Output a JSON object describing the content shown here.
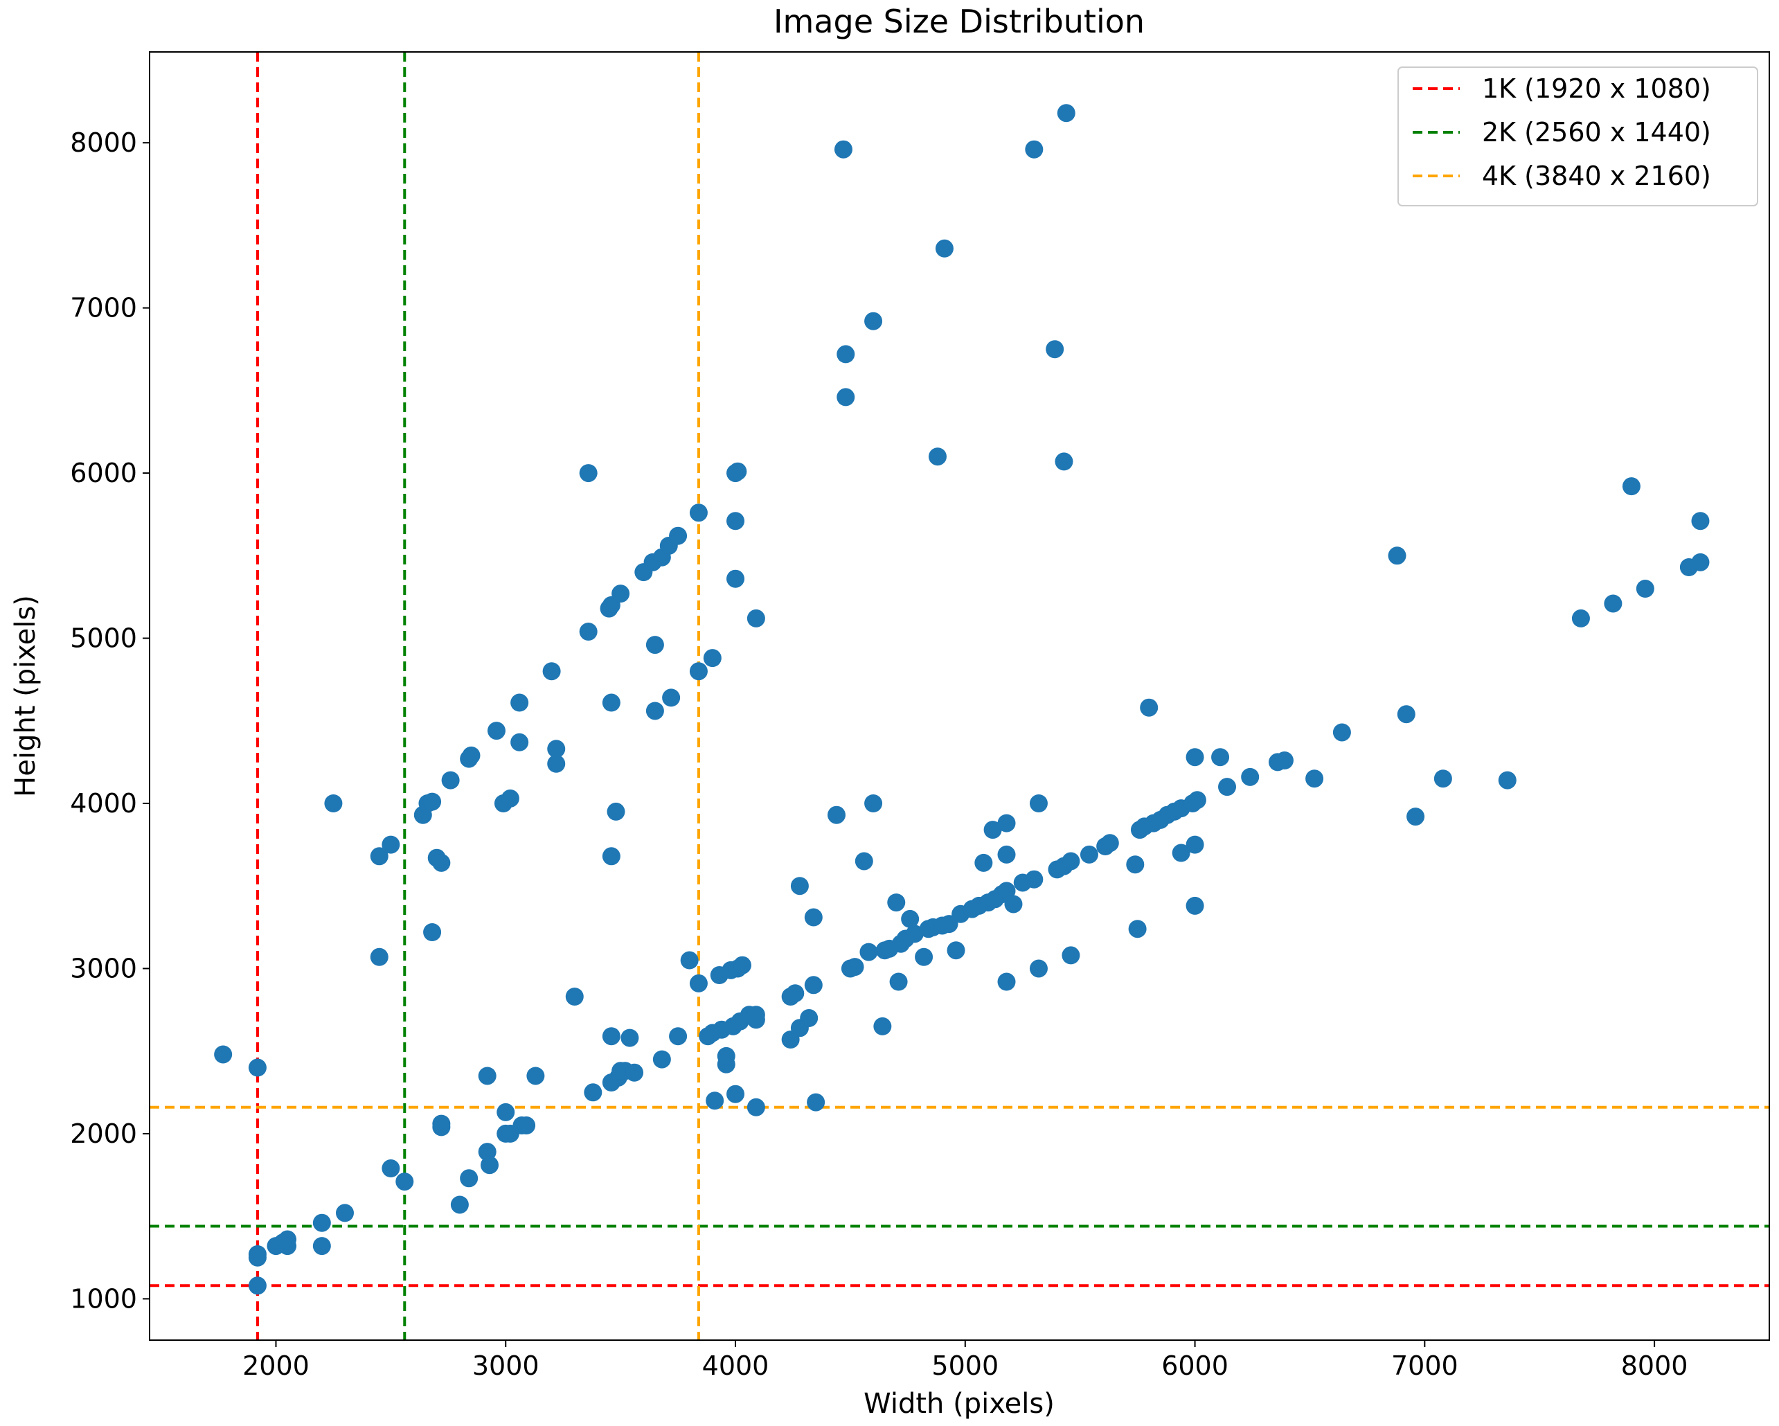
{
  "chart_data": {
    "type": "scatter",
    "title": "Image Size Distribution",
    "xlabel": "Width (pixels)",
    "ylabel": "Height (pixels)",
    "xlim": [
      1450,
      8500
    ],
    "ylim": [
      750,
      8550
    ],
    "xticks": [
      2000,
      3000,
      4000,
      5000,
      6000,
      7000,
      8000
    ],
    "yticks": [
      1000,
      2000,
      3000,
      4000,
      5000,
      6000,
      7000,
      8000
    ],
    "grid": false,
    "legend_position": "upper right",
    "point_color": "#1f77b4",
    "reference_lines": [
      {
        "label": "1K (1920 x 1080)",
        "x": 1920,
        "y": 1080,
        "color": "#ff0000"
      },
      {
        "label": "2K (2560 x 1440)",
        "x": 2560,
        "y": 1440,
        "color": "#008000"
      },
      {
        "label": "4K (3840 x 2160)",
        "x": 3840,
        "y": 2160,
        "color": "#ffa500"
      }
    ],
    "points": [
      [
        1770,
        2480
      ],
      [
        1920,
        2400
      ],
      [
        1920,
        1270
      ],
      [
        1920,
        1250
      ],
      [
        1920,
        1080
      ],
      [
        2000,
        1320
      ],
      [
        2030,
        1340
      ],
      [
        2050,
        1360
      ],
      [
        2050,
        1320
      ],
      [
        2200,
        1460
      ],
      [
        2200,
        1320
      ],
      [
        2250,
        4000
      ],
      [
        2300,
        1520
      ],
      [
        2450,
        3680
      ],
      [
        2450,
        3070
      ],
      [
        2500,
        3750
      ],
      [
        2500,
        1790
      ],
      [
        2560,
        1710
      ],
      [
        2640,
        3930
      ],
      [
        2660,
        4000
      ],
      [
        2680,
        4010
      ],
      [
        2680,
        3220
      ],
      [
        2700,
        3670
      ],
      [
        2720,
        3640
      ],
      [
        2720,
        2060
      ],
      [
        2720,
        2040
      ],
      [
        2760,
        4140
      ],
      [
        2800,
        1570
      ],
      [
        2840,
        4270
      ],
      [
        2840,
        1730
      ],
      [
        2850,
        4290
      ],
      [
        2920,
        2350
      ],
      [
        2920,
        1890
      ],
      [
        2930,
        1810
      ],
      [
        2960,
        4440
      ],
      [
        2990,
        4000
      ],
      [
        3000,
        2130
      ],
      [
        3000,
        2000
      ],
      [
        3020,
        4030
      ],
      [
        3020,
        2000
      ],
      [
        3060,
        4370
      ],
      [
        3060,
        4610
      ],
      [
        3070,
        2050
      ],
      [
        3090,
        2050
      ],
      [
        3130,
        2350
      ],
      [
        3200,
        4800
      ],
      [
        3220,
        4330
      ],
      [
        3220,
        4240
      ],
      [
        3300,
        2830
      ],
      [
        3360,
        6000
      ],
      [
        3360,
        5040
      ],
      [
        3380,
        2250
      ],
      [
        3450,
        5180
      ],
      [
        3460,
        4610
      ],
      [
        3460,
        5200
      ],
      [
        3460,
        3680
      ],
      [
        3460,
        2590
      ],
      [
        3460,
        2310
      ],
      [
        3480,
        3950
      ],
      [
        3490,
        2340
      ],
      [
        3500,
        5270
      ],
      [
        3500,
        2380
      ],
      [
        3520,
        2380
      ],
      [
        3540,
        2580
      ],
      [
        3560,
        2370
      ],
      [
        3600,
        5400
      ],
      [
        3640,
        5460
      ],
      [
        3650,
        4960
      ],
      [
        3650,
        4560
      ],
      [
        3680,
        5490
      ],
      [
        3680,
        2450
      ],
      [
        3710,
        5560
      ],
      [
        3720,
        4640
      ],
      [
        3750,
        5620
      ],
      [
        3750,
        2590
      ],
      [
        3800,
        3050
      ],
      [
        3840,
        5760
      ],
      [
        3840,
        4800
      ],
      [
        3840,
        2910
      ],
      [
        3880,
        2590
      ],
      [
        3900,
        4880
      ],
      [
        3900,
        2610
      ],
      [
        3910,
        2200
      ],
      [
        3930,
        2960
      ],
      [
        3940,
        2630
      ],
      [
        3960,
        2420
      ],
      [
        3960,
        2470
      ],
      [
        3980,
        2990
      ],
      [
        3990,
        2650
      ],
      [
        4000,
        6000
      ],
      [
        4000,
        5710
      ],
      [
        4000,
        5360
      ],
      [
        4000,
        2240
      ],
      [
        4010,
        3000
      ],
      [
        4010,
        6010
      ],
      [
        4020,
        2680
      ],
      [
        4030,
        3020
      ],
      [
        4060,
        2720
      ],
      [
        4090,
        5120
      ],
      [
        4090,
        2720
      ],
      [
        4090,
        2690
      ],
      [
        4090,
        2160
      ],
      [
        4240,
        2830
      ],
      [
        4240,
        2570
      ],
      [
        4260,
        2850
      ],
      [
        4280,
        3500
      ],
      [
        4280,
        2640
      ],
      [
        4320,
        2700
      ],
      [
        4340,
        3310
      ],
      [
        4340,
        2900
      ],
      [
        4350,
        2190
      ],
      [
        4440,
        3930
      ],
      [
        4470,
        7960
      ],
      [
        4480,
        6720
      ],
      [
        4480,
        6460
      ],
      [
        4500,
        3000
      ],
      [
        4520,
        3010
      ],
      [
        4560,
        3650
      ],
      [
        4580,
        3100
      ],
      [
        4600,
        4000
      ],
      [
        4600,
        6920
      ],
      [
        4640,
        2650
      ],
      [
        4650,
        3110
      ],
      [
        4670,
        3120
      ],
      [
        4700,
        3400
      ],
      [
        4710,
        2920
      ],
      [
        4720,
        3150
      ],
      [
        4740,
        3180
      ],
      [
        4760,
        3300
      ],
      [
        4780,
        3210
      ],
      [
        4820,
        3070
      ],
      [
        4840,
        3240
      ],
      [
        4860,
        3250
      ],
      [
        4880,
        6100
      ],
      [
        4900,
        3260
      ],
      [
        4910,
        7360
      ],
      [
        4930,
        3270
      ],
      [
        4960,
        3110
      ],
      [
        4980,
        3330
      ],
      [
        5030,
        3360
      ],
      [
        5060,
        3380
      ],
      [
        5080,
        3640
      ],
      [
        5100,
        3400
      ],
      [
        5120,
        3840
      ],
      [
        5130,
        3420
      ],
      [
        5160,
        3450
      ],
      [
        5180,
        3880
      ],
      [
        5180,
        3690
      ],
      [
        5180,
        3470
      ],
      [
        5180,
        2920
      ],
      [
        5210,
        3390
      ],
      [
        5250,
        3520
      ],
      [
        5300,
        7960
      ],
      [
        5300,
        3540
      ],
      [
        5320,
        4000
      ],
      [
        5320,
        3000
      ],
      [
        5390,
        6750
      ],
      [
        5400,
        3600
      ],
      [
        5430,
        3620
      ],
      [
        5430,
        6070
      ],
      [
        5440,
        8180
      ],
      [
        5460,
        3650
      ],
      [
        5460,
        3080
      ],
      [
        5540,
        3690
      ],
      [
        5610,
        3740
      ],
      [
        5630,
        3760
      ],
      [
        5740,
        3630
      ],
      [
        5750,
        3240
      ],
      [
        5760,
        3840
      ],
      [
        5780,
        3860
      ],
      [
        5800,
        4580
      ],
      [
        5820,
        3880
      ],
      [
        5850,
        3900
      ],
      [
        5880,
        3930
      ],
      [
        5910,
        3950
      ],
      [
        5940,
        3970
      ],
      [
        5940,
        3700
      ],
      [
        5990,
        4000
      ],
      [
        6000,
        4280
      ],
      [
        6000,
        3750
      ],
      [
        6000,
        3380
      ],
      [
        6010,
        4020
      ],
      [
        6110,
        4280
      ],
      [
        6140,
        4100
      ],
      [
        6240,
        4160
      ],
      [
        6360,
        4250
      ],
      [
        6390,
        4260
      ],
      [
        6520,
        4150
      ],
      [
        6640,
        4430
      ],
      [
        6880,
        5500
      ],
      [
        6920,
        4540
      ],
      [
        6960,
        3920
      ],
      [
        7080,
        4150
      ],
      [
        7360,
        4140
      ],
      [
        7680,
        5120
      ],
      [
        7820,
        5210
      ],
      [
        7900,
        5920
      ],
      [
        7960,
        5300
      ],
      [
        8150,
        5430
      ],
      [
        8200,
        5710
      ],
      [
        8200,
        5460
      ]
    ]
  }
}
